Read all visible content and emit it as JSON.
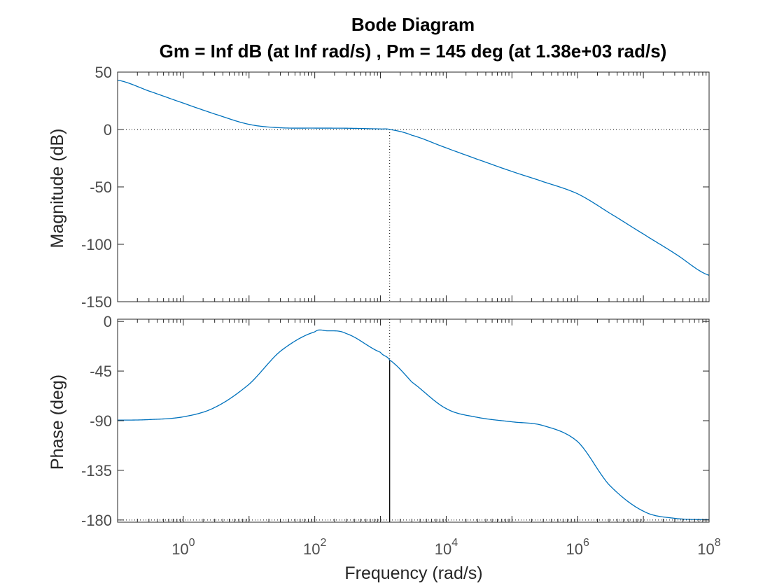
{
  "chart_data": {
    "type": "line",
    "title": "Bode Diagram",
    "subtitle": "Gm = Inf dB (at Inf rad/s) ,  Pm = 145 deg (at 1.38e+03 rad/s)",
    "xlabel": "Frequency  (rad/s)",
    "x_scale": "log",
    "xlim": [
      0.1,
      100000000
    ],
    "x_ticks": [
      {
        "value": 1,
        "base": "10",
        "exp": "0"
      },
      {
        "value": 100,
        "base": "10",
        "exp": "2"
      },
      {
        "value": 10000,
        "base": "10",
        "exp": "4"
      },
      {
        "value": 1000000,
        "base": "10",
        "exp": "6"
      },
      {
        "value": 100000000,
        "base": "10",
        "exp": "8"
      }
    ],
    "grid": false,
    "line_color": "#0072bd",
    "crossover_frequency": 1380,
    "panels": [
      {
        "name": "magnitude",
        "ylabel": "Magnitude (dB)",
        "ylim": [
          -150,
          50
        ],
        "y_ticks": [
          50,
          0,
          -50,
          -100,
          -150
        ],
        "y_tick_labels": [
          "50",
          "0",
          "-50",
          "-100",
          "-150"
        ],
        "reference_line": 0,
        "series": [
          {
            "x": [
              0.1,
              0.3,
              1,
              3,
              10,
              30,
              100,
              300,
              1000,
              1380,
              3000,
              10000,
              30000,
              100000,
              300000,
              1000000,
              3000000,
              10000000,
              30000000,
              100000000
            ],
            "values": [
              43,
              33.5,
              23,
              13.5,
              4.5,
              1.5,
              1.2,
              1.1,
              0.5,
              0,
              -5,
              -16,
              -26,
              -36.5,
              -45.5,
              -56,
              -72.5,
              -91,
              -108,
              -127
            ]
          }
        ]
      },
      {
        "name": "phase",
        "ylabel": "Phase (deg)",
        "ylim": [
          -182,
          2
        ],
        "y_ticks": [
          0,
          -45,
          -90,
          -135,
          -180
        ],
        "y_tick_labels": [
          "0",
          "-45",
          "-90",
          "-135",
          "-180"
        ],
        "reference_line": -180,
        "series": [
          {
            "x": [
              0.1,
              0.3,
              1,
              3,
              10,
              30,
              100,
              150,
              300,
              1000,
              1380,
              3000,
              10000,
              30000,
              100000,
              300000,
              1000000,
              3000000,
              10000000,
              30000000,
              100000000
            ],
            "values": [
              -89.5,
              -89,
              -86.5,
              -78,
              -57,
              -27,
              -9.5,
              -8.5,
              -11,
              -28,
              -35,
              -55,
              -79,
              -87,
              -91,
              -94.5,
              -109,
              -148,
              -172,
              -178.5,
              -179.7
            ]
          }
        ]
      }
    ]
  }
}
